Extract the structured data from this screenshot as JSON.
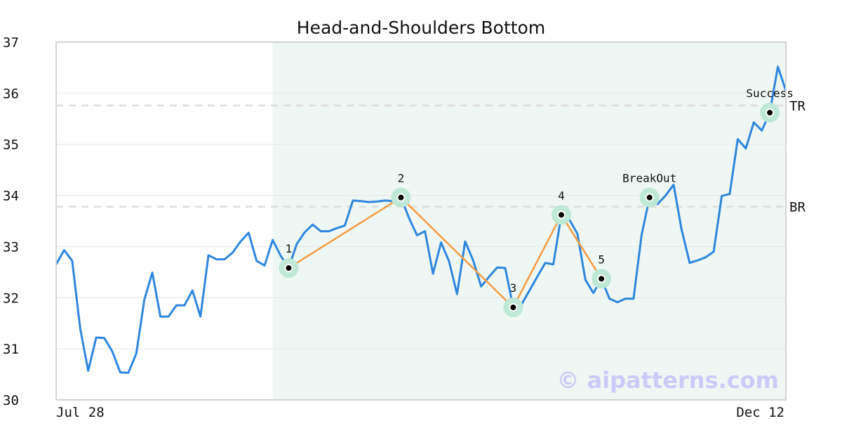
{
  "chart_data": {
    "type": "line",
    "title": "Head-and-Shoulders Bottom",
    "ylim": [
      30,
      37
    ],
    "yticks": [
      "30",
      "31",
      "32",
      "33",
      "34",
      "35",
      "36",
      "37"
    ],
    "x_start_label": "Jul 28",
    "x_end_label": "Dec 12",
    "grid": "horizontal",
    "colors": {
      "price": "#2e86de",
      "pattern": "#f59b42",
      "highlight_region": "#eef7f3",
      "marker_halo": "#bfe8d6",
      "levels": "#dddddd",
      "watermark": "#c9ccf7"
    },
    "price": [
      32.65,
      32.93,
      32.72,
      31.4,
      30.57,
      31.22,
      31.21,
      30.95,
      30.54,
      30.53,
      30.91,
      31.96,
      32.49,
      31.63,
      31.63,
      31.85,
      31.85,
      32.14,
      31.63,
      32.83,
      32.75,
      32.75,
      32.88,
      33.1,
      33.27,
      32.72,
      32.63,
      33.13,
      32.82,
      32.58,
      33.05,
      33.28,
      33.43,
      33.3,
      33.3,
      33.36,
      33.41,
      33.9,
      33.89,
      33.87,
      33.88,
      33.9,
      33.89,
      33.96,
      33.56,
      33.22,
      33.3,
      32.47,
      33.08,
      32.71,
      32.07,
      33.1,
      32.73,
      32.22,
      32.41,
      32.59,
      32.58,
      31.81,
      31.86,
      32.13,
      32.41,
      32.68,
      32.65,
      33.62,
      33.53,
      33.25,
      32.35,
      32.09,
      32.37,
      31.98,
      31.91,
      31.98,
      31.98,
      33.22,
      33.96,
      33.83,
      34.0,
      34.21,
      33.33,
      32.68,
      32.73,
      32.79,
      32.9,
      33.99,
      34.03,
      35.1,
      34.92,
      35.43,
      35.27,
      35.62,
      36.52,
      36.05
    ],
    "highlight_range": [
      27,
      91
    ],
    "levels": [
      {
        "label": "TR",
        "value": 35.76
      },
      {
        "label": "BR",
        "value": 33.78
      }
    ],
    "pattern_points": [
      {
        "label": "1",
        "index": 29,
        "value": 32.58
      },
      {
        "label": "2",
        "index": 43,
        "value": 33.96
      },
      {
        "label": "3",
        "index": 57,
        "value": 31.81
      },
      {
        "label": "4",
        "index": 63,
        "value": 33.62
      },
      {
        "label": "5",
        "index": 68,
        "value": 32.37
      }
    ],
    "events": [
      {
        "label": "BreakOut",
        "index": 74,
        "value": 33.96
      },
      {
        "label": "Success",
        "index": 89,
        "value": 35.62
      }
    ]
  },
  "watermark": "© aipatterns.com"
}
